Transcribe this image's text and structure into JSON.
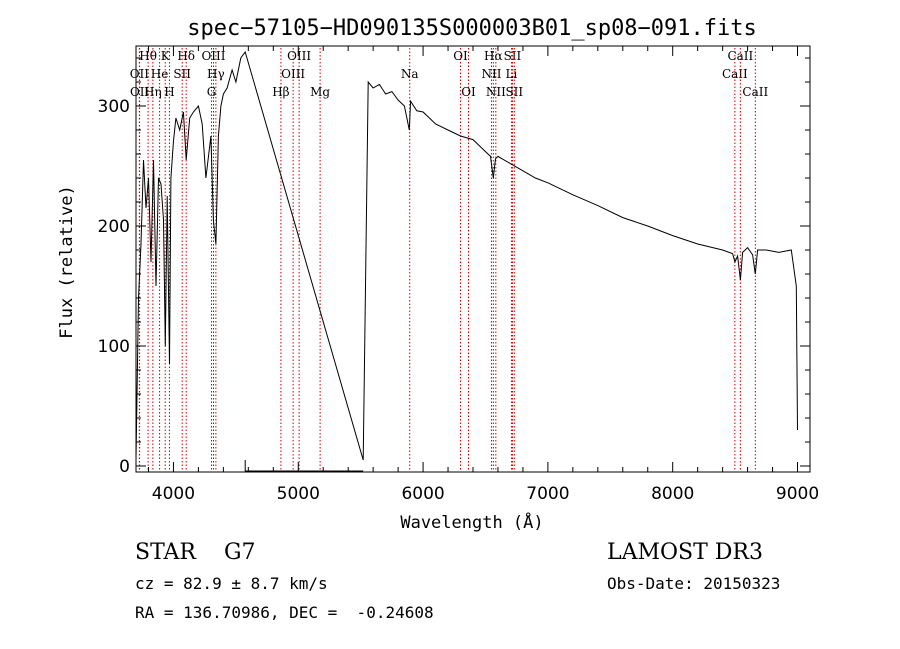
{
  "chart_data": {
    "type": "line",
    "title": "spec−57105−HD090135S000003B01_sp08−091.fits",
    "xlabel": "Wavelength (Å)",
    "ylabel": "Flux (relative)",
    "xlim": [
      3700,
      9100
    ],
    "ylim": [
      -5,
      350
    ],
    "xticks": [
      4000,
      5000,
      6000,
      7000,
      8000,
      9000
    ],
    "yticks": [
      0,
      100,
      200,
      300
    ],
    "line_color": "#000000",
    "marker_color": "#cc0000",
    "grid": false,
    "gaps": [
      [
        4575,
        5520
      ]
    ],
    "series": [
      {
        "name": "spectrum",
        "x": [
          3700,
          3720,
          3740,
          3760,
          3780,
          3800,
          3820,
          3840,
          3860,
          3880,
          3900,
          3920,
          3935,
          3950,
          3968,
          3980,
          4000,
          4020,
          4050,
          4080,
          4102,
          4130,
          4160,
          4200,
          4230,
          4260,
          4300,
          4320,
          4340,
          4360,
          4380,
          4400,
          4430,
          4470,
          4500,
          4540,
          4575,
          5520,
          5560,
          5600,
          5650,
          5700,
          5750,
          5800,
          5850,
          5890,
          5900,
          5950,
          6000,
          6100,
          6200,
          6300,
          6400,
          6500,
          6540,
          6563,
          6580,
          6600,
          6700,
          6800,
          6900,
          7000,
          7200,
          7400,
          7600,
          7800,
          8000,
          8200,
          8400,
          8480,
          8498,
          8520,
          8542,
          8560,
          8600,
          8640,
          8662,
          8680,
          8750,
          8850,
          8950,
          8990,
          9000
        ],
        "y": [
          5,
          140,
          185,
          255,
          215,
          240,
          170,
          255,
          150,
          240,
          235,
          205,
          100,
          225,
          85,
          240,
          270,
          290,
          280,
          295,
          255,
          290,
          295,
          300,
          285,
          240,
          275,
          205,
          185,
          275,
          300,
          310,
          315,
          330,
          320,
          340,
          345,
          5,
          320,
          315,
          318,
          310,
          312,
          305,
          300,
          280,
          304,
          296,
          295,
          285,
          280,
          275,
          272,
          262,
          258,
          240,
          256,
          258,
          252,
          246,
          240,
          236,
          226,
          217,
          207,
          200,
          192,
          185,
          180,
          177,
          170,
          175,
          155,
          178,
          182,
          176,
          160,
          180,
          180,
          178,
          180,
          150,
          30
        ]
      }
    ],
    "lines": [
      {
        "label": "Hθ",
        "wavelength": 3797,
        "row": 0
      },
      {
        "label": "OII",
        "wavelength": 3727,
        "row": 1
      },
      {
        "label": "OII",
        "wavelength": 3729,
        "row": 2
      },
      {
        "label": "Hη",
        "wavelength": 3835,
        "row": 2
      },
      {
        "label": "He",
        "wavelength": 3889,
        "row": 1
      },
      {
        "label": "K",
        "wavelength": 3934,
        "row": 0
      },
      {
        "label": "H",
        "wavelength": 3968,
        "row": 2
      },
      {
        "label": "SII",
        "wavelength": 4070,
        "row": 1
      },
      {
        "label": "Hδ",
        "wavelength": 4102,
        "row": 0
      },
      {
        "label": "OIII",
        "wavelength": 4321,
        "row": 0
      },
      {
        "label": "Hγ",
        "wavelength": 4340,
        "row": 1
      },
      {
        "label": "G",
        "wavelength": 4305,
        "row": 2
      },
      {
        "label": "Hβ",
        "wavelength": 4861,
        "row": 2
      },
      {
        "label": "OIII",
        "wavelength": 4959,
        "row": 1
      },
      {
        "label": "OIII",
        "wavelength": 5007,
        "row": 0
      },
      {
        "label": "Mg",
        "wavelength": 5175,
        "row": 2
      },
      {
        "label": "Na",
        "wavelength": 5893,
        "row": 1
      },
      {
        "label": "OI",
        "wavelength": 6300,
        "row": 0
      },
      {
        "label": "OI",
        "wavelength": 6364,
        "row": 2
      },
      {
        "label": "NII",
        "wavelength": 6548,
        "row": 1
      },
      {
        "label": "NII",
        "wavelength": 6583,
        "row": 2
      },
      {
        "label": "Hα",
        "wavelength": 6563,
        "row": 0
      },
      {
        "label": "SII",
        "wavelength": 6716,
        "row": 0
      },
      {
        "label": "Li",
        "wavelength": 6708,
        "row": 1
      },
      {
        "label": "SII",
        "wavelength": 6731,
        "row": 2
      },
      {
        "label": "CaII",
        "wavelength": 8498,
        "row": 1
      },
      {
        "label": "CaII",
        "wavelength": 8542,
        "row": 0
      },
      {
        "label": "CaII",
        "wavelength": 8662,
        "row": 2
      }
    ]
  },
  "info": {
    "object_class": "STAR    G7",
    "survey": "LAMOST DR3",
    "cz": "cz = 82.9 ± 8.7 km/s",
    "obs_date": "Obs-Date: 20150323",
    "radec": "RA = 136.70986, DEC =  -0.24608"
  }
}
